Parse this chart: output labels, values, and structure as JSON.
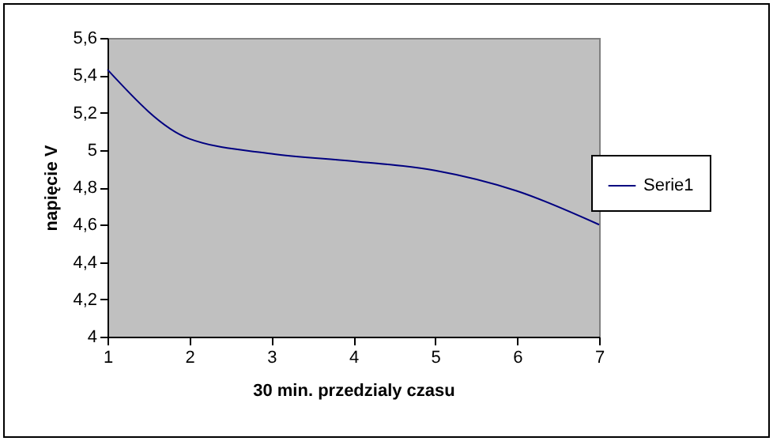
{
  "chart_data": {
    "type": "line",
    "xlabel": "30 min. przedzialy czasu",
    "ylabel": "napięcie V",
    "x": [
      1,
      2,
      3,
      4,
      5,
      6,
      7
    ],
    "series": [
      {
        "name": "Serie1",
        "color": "#000080",
        "values": [
          5.43,
          5.06,
          4.98,
          4.94,
          4.89,
          4.78,
          4.6
        ]
      }
    ],
    "xlim": [
      1,
      7
    ],
    "xticks": [
      1,
      2,
      3,
      4,
      5,
      6,
      7
    ],
    "ylim": [
      4,
      5.6
    ],
    "yticks": [
      {
        "value": 4,
        "label": "4"
      },
      {
        "value": 4.2,
        "label": "4,2"
      },
      {
        "value": 4.4,
        "label": "4,4"
      },
      {
        "value": 4.6,
        "label": "4,6"
      },
      {
        "value": 4.8,
        "label": "4,8"
      },
      {
        "value": 5,
        "label": "5"
      },
      {
        "value": 5.2,
        "label": "5,2"
      },
      {
        "value": 5.4,
        "label": "5,4"
      },
      {
        "value": 5.6,
        "label": "5,6"
      }
    ],
    "legend": "right",
    "grid": false,
    "marker": "none",
    "line_style": "solid"
  }
}
